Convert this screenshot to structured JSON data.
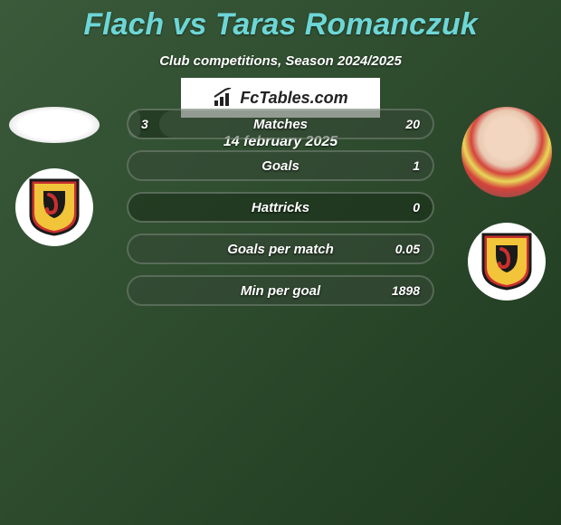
{
  "title": "Flach vs Taras Romanczuk",
  "subtitle": "Club competitions, Season 2024/2025",
  "date": "14 february 2025",
  "brand": "FcTables.com",
  "colors": {
    "accent": "#6dd6d6",
    "bar_bg": "rgba(20,40,20,0.5)",
    "shield_red": "#c8302e",
    "shield_yellow": "#f2c43a",
    "shield_black": "#1a1a1a"
  },
  "rows": [
    {
      "label": "Matches",
      "left": "3",
      "right": "20",
      "left_pct": 4,
      "right_pct": 90
    },
    {
      "label": "Goals",
      "left": "",
      "right": "1",
      "left_pct": 0,
      "right_pct": 100
    },
    {
      "label": "Hattricks",
      "left": "",
      "right": "0",
      "left_pct": 0,
      "right_pct": 0
    },
    {
      "label": "Goals per match",
      "left": "",
      "right": "0.05",
      "left_pct": 0,
      "right_pct": 100
    },
    {
      "label": "Min per goal",
      "left": "",
      "right": "1898",
      "left_pct": 0,
      "right_pct": 100
    }
  ]
}
